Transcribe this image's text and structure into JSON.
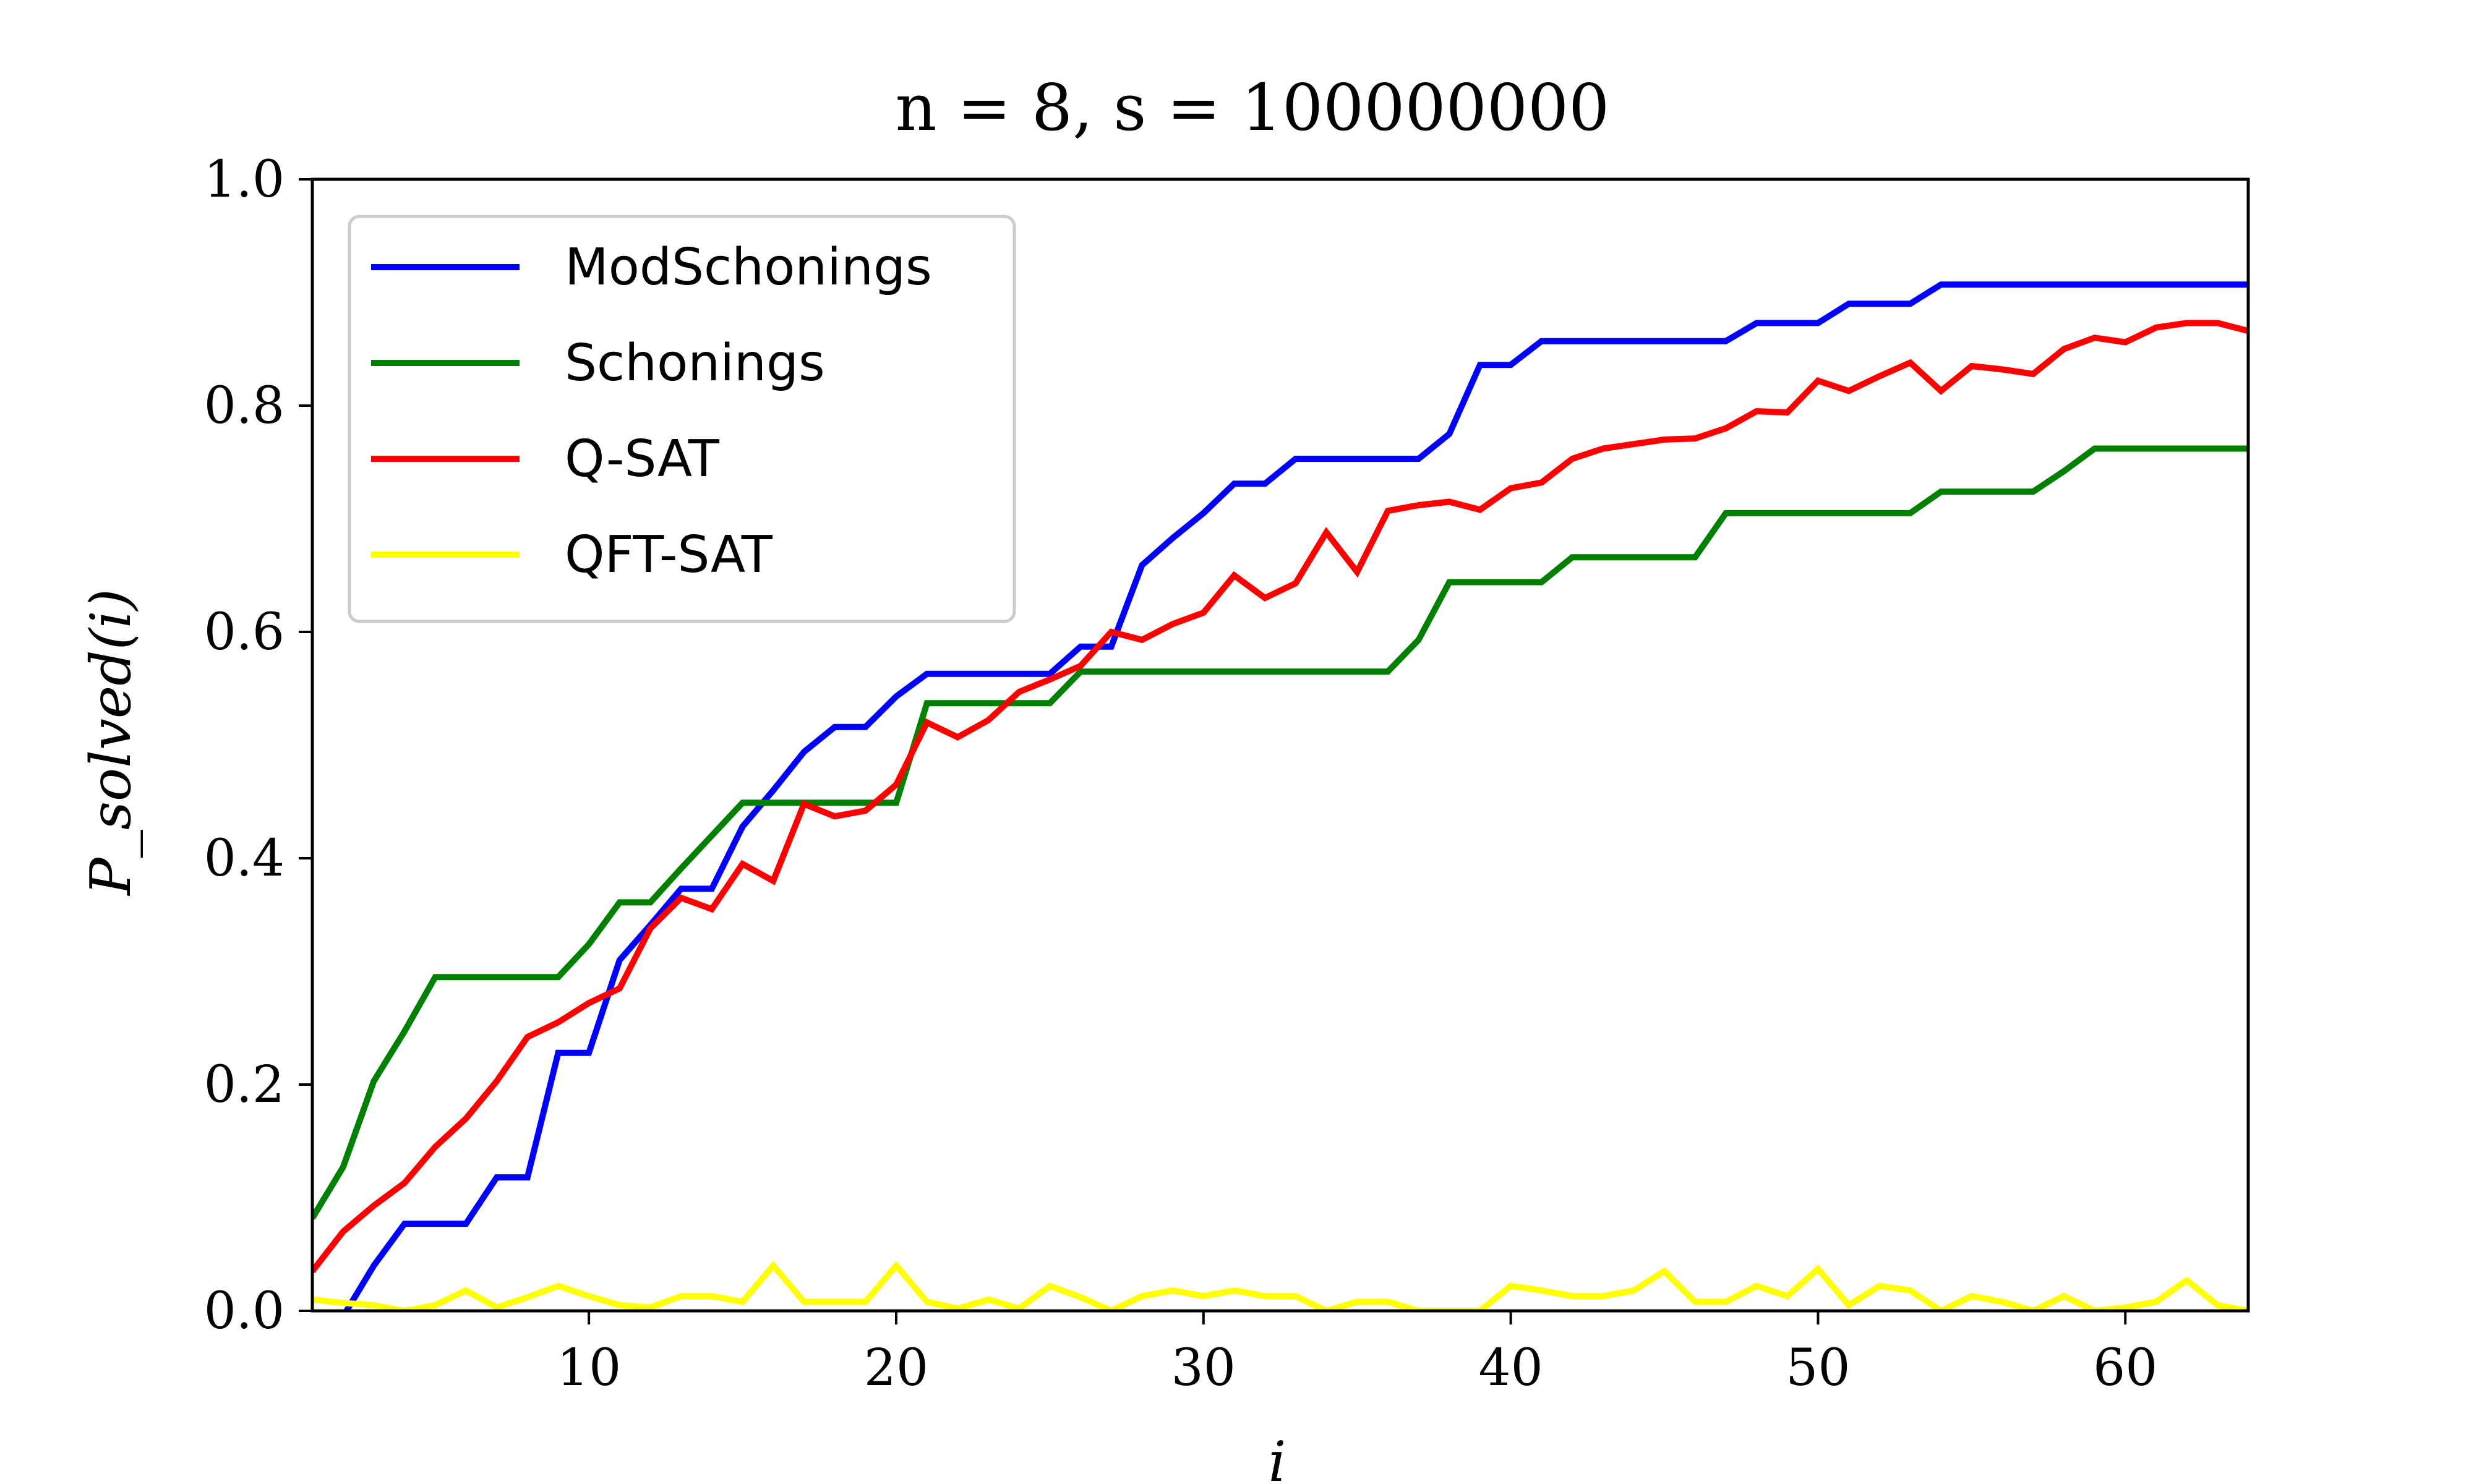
{
  "chart_data": {
    "type": "line",
    "title": "n = 8, s = 100000000",
    "xlabel": "i",
    "ylabel": "P_solved(i)",
    "xlim": [
      1,
      64
    ],
    "ylim": [
      0,
      1.0
    ],
    "xticks": [
      10,
      20,
      30,
      40,
      50,
      60
    ],
    "yticks": [
      "0.0",
      "0.2",
      "0.4",
      "0.6",
      "0.8",
      "1.0"
    ],
    "legend_position": "upper-left",
    "grid": false,
    "x": [
      1,
      2,
      3,
      4,
      5,
      6,
      7,
      8,
      9,
      10,
      11,
      12,
      13,
      14,
      15,
      16,
      17,
      18,
      19,
      20,
      21,
      22,
      23,
      24,
      25,
      26,
      27,
      28,
      29,
      30,
      31,
      32,
      33,
      34,
      35,
      36,
      37,
      38,
      39,
      40,
      41,
      42,
      43,
      44,
      45,
      46,
      47,
      48,
      49,
      50,
      51,
      52,
      53,
      54,
      55,
      56,
      57,
      58,
      59,
      60,
      61,
      62,
      63,
      64
    ],
    "series": [
      {
        "name": "ModSchonings",
        "color": "#0000ff",
        "values": [
          -0.01,
          -0.005,
          0.04,
          0.077,
          0.077,
          0.077,
          0.118,
          0.118,
          0.228,
          0.228,
          0.31,
          0.341,
          0.373,
          0.373,
          0.428,
          0.46,
          0.494,
          0.516,
          0.516,
          0.543,
          0.563,
          0.563,
          0.563,
          0.563,
          0.563,
          0.587,
          0.587,
          0.659,
          0.683,
          0.705,
          0.731,
          0.731,
          0.753,
          0.753,
          0.753,
          0.753,
          0.753,
          0.775,
          0.836,
          0.836,
          0.857,
          0.857,
          0.857,
          0.857,
          0.857,
          0.857,
          0.857,
          0.873,
          0.873,
          0.873,
          0.89,
          0.89,
          0.89,
          0.907,
          0.907,
          0.907,
          0.907,
          0.907,
          0.907,
          0.907,
          0.907,
          0.907,
          0.907,
          0.907
        ]
      },
      {
        "name": "Schonings",
        "color": "#008000",
        "values": [
          0.082,
          0.127,
          0.203,
          0.247,
          0.295,
          0.295,
          0.295,
          0.295,
          0.295,
          0.324,
          0.361,
          0.361,
          0.391,
          0.42,
          0.449,
          0.449,
          0.449,
          0.449,
          0.449,
          0.449,
          0.537,
          0.537,
          0.537,
          0.537,
          0.537,
          0.565,
          0.565,
          0.565,
          0.565,
          0.565,
          0.565,
          0.565,
          0.565,
          0.565,
          0.565,
          0.565,
          0.593,
          0.644,
          0.644,
          0.644,
          0.644,
          0.666,
          0.666,
          0.666,
          0.666,
          0.666,
          0.705,
          0.705,
          0.705,
          0.705,
          0.705,
          0.705,
          0.705,
          0.724,
          0.724,
          0.724,
          0.724,
          0.742,
          0.762,
          0.762,
          0.762,
          0.762,
          0.762,
          0.762
        ]
      },
      {
        "name": "Q-SAT",
        "color": "#ff0000",
        "values": [
          0.035,
          0.07,
          0.093,
          0.113,
          0.145,
          0.17,
          0.203,
          0.242,
          0.255,
          0.272,
          0.285,
          0.338,
          0.365,
          0.355,
          0.395,
          0.38,
          0.448,
          0.437,
          0.442,
          0.465,
          0.52,
          0.507,
          0.522,
          0.547,
          0.558,
          0.57,
          0.6,
          0.593,
          0.607,
          0.617,
          0.65,
          0.63,
          0.643,
          0.688,
          0.653,
          0.707,
          0.712,
          0.715,
          0.708,
          0.727,
          0.732,
          0.753,
          0.762,
          0.766,
          0.77,
          0.771,
          0.78,
          0.795,
          0.794,
          0.822,
          0.813,
          0.826,
          0.838,
          0.813,
          0.835,
          0.832,
          0.828,
          0.85,
          0.86,
          0.856,
          0.869,
          0.873,
          0.873,
          0.866
        ]
      },
      {
        "name": "QFT-SAT",
        "color": "#ffff00",
        "values": [
          0.01,
          0.007,
          0.005,
          0.0,
          0.005,
          0.018,
          0.003,
          0.012,
          0.022,
          0.013,
          0.005,
          0.003,
          0.013,
          0.013,
          0.008,
          0.04,
          0.008,
          0.008,
          0.008,
          0.04,
          0.008,
          0.002,
          0.01,
          0.002,
          0.022,
          0.012,
          0.0,
          0.013,
          0.018,
          0.013,
          0.018,
          0.013,
          0.013,
          0.0,
          0.008,
          0.008,
          0.0,
          0.0,
          0.0,
          0.022,
          0.018,
          0.013,
          0.013,
          0.018,
          0.035,
          0.008,
          0.008,
          0.022,
          0.013,
          0.037,
          0.005,
          0.022,
          0.018,
          0.0,
          0.013,
          0.008,
          0.0,
          0.013,
          0.0,
          0.003,
          0.008,
          0.027,
          0.005,
          0.0
        ]
      }
    ]
  }
}
